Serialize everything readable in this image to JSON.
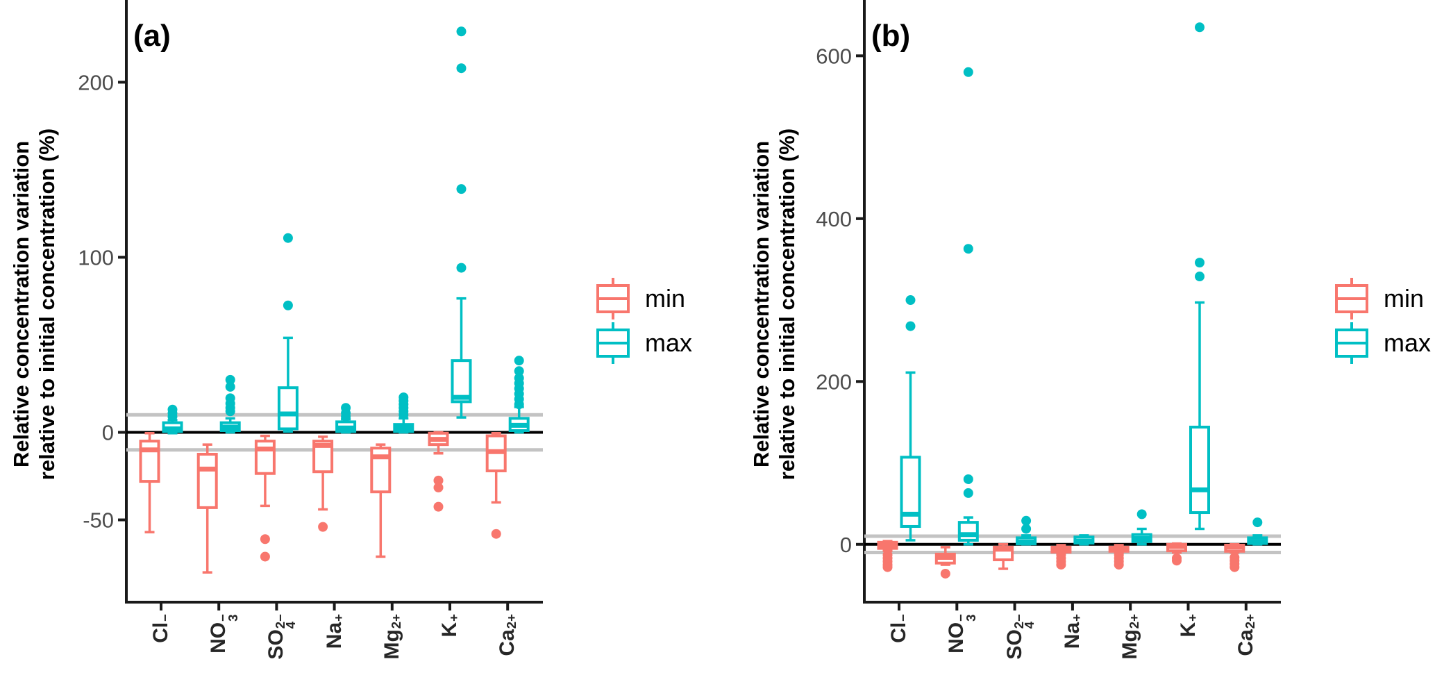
{
  "colors": {
    "min": "#F8766D",
    "max": "#00BFC4",
    "reference_line": "#C3C3C3",
    "zero_line": "#000000",
    "axis": "#1A1A1A",
    "y_tick_label": "#4D4D4D",
    "x_category_label": "#262626",
    "panel_label": "#000000"
  },
  "legend": {
    "items": [
      {
        "label": "min"
      },
      {
        "label": "max"
      }
    ]
  },
  "chart_data": [
    {
      "type": "boxplot",
      "panel_label": "(a)",
      "title": "",
      "xlabel": "",
      "ylabel_lines": [
        "Relative concentration variation",
        "relative to initial concentration (%)"
      ],
      "categories": [
        "Cl⁻",
        "NO₃⁻",
        "SO₄²⁻",
        "Na⁺",
        "Mg²⁺",
        "K⁺",
        "Ca²⁺"
      ],
      "categories_rich": [
        {
          "base": "Cl",
          "sub": "",
          "sup": "−"
        },
        {
          "base": "NO",
          "sub": "3",
          "sup": "−"
        },
        {
          "base": "SO",
          "sub": "4",
          "sup": "2−"
        },
        {
          "base": "Na",
          "sub": "",
          "sup": "+"
        },
        {
          "base": "Mg",
          "sub": "",
          "sup": "2+"
        },
        {
          "base": "K",
          "sub": "",
          "sup": "+"
        },
        {
          "base": "Ca",
          "sub": "",
          "sup": "2+"
        }
      ],
      "y_tick_values": [
        200,
        100,
        0,
        -50
      ],
      "y_tick_labels": [
        "200",
        "100",
        "0",
        "-50"
      ],
      "ylim": [
        -97,
        243
      ],
      "reference_lines": [
        10,
        -10
      ],
      "zero_line": 0,
      "grid": false,
      "legend_position": "right",
      "series": [
        {
          "name": "min",
          "boxes": [
            {
              "whisker_low": -57,
              "q1": -28,
              "median": -10,
              "q3": -5,
              "whisker_high": -0.5,
              "outliers": []
            },
            {
              "whisker_low": -80,
              "q1": -43,
              "median": -21,
              "q3": -12.5,
              "whisker_high": -7,
              "outliers": []
            },
            {
              "whisker_low": -42,
              "q1": -23.5,
              "median": -9.5,
              "q3": -5,
              "whisker_high": -2,
              "outliers": [
                -61,
                -71
              ]
            },
            {
              "whisker_low": -44,
              "q1": -22.5,
              "median": -7.5,
              "q3": -5,
              "whisker_high": -2.5,
              "outliers": [
                -54
              ]
            },
            {
              "whisker_low": -71,
              "q1": -34,
              "median": -14,
              "q3": -9,
              "whisker_high": -7,
              "outliers": []
            },
            {
              "whisker_low": -12,
              "q1": -7,
              "median": -4,
              "q3": -0.5,
              "whisker_high": 0,
              "outliers": [
                -27.5,
                -31.5,
                -42.5
              ]
            },
            {
              "whisker_low": -40,
              "q1": -22,
              "median": -11,
              "q3": -2,
              "whisker_high": -0.5,
              "outliers": [
                -58
              ]
            }
          ]
        },
        {
          "name": "max",
          "boxes": [
            {
              "whisker_low": -0.5,
              "q1": 0.5,
              "median": 2,
              "q3": 5.5,
              "whisker_high": 7,
              "outliers": [
                9,
                11,
                13
              ]
            },
            {
              "whisker_low": 0,
              "q1": 1,
              "median": 3,
              "q3": 5.5,
              "whisker_high": 8,
              "outliers": [
                12,
                14,
                16.5,
                19.5,
                26,
                30
              ]
            },
            {
              "whisker_low": 0.5,
              "q1": 2,
              "median": 10.5,
              "q3": 25.5,
              "whisker_high": 54,
              "outliers": [
                72.5,
                111
              ]
            },
            {
              "whisker_low": 0,
              "q1": 0.5,
              "median": 2.5,
              "q3": 6,
              "whisker_high": 7.5,
              "outliers": [
                9,
                11,
                14
              ]
            },
            {
              "whisker_low": 0,
              "q1": 0.5,
              "median": 2.5,
              "q3": 4.5,
              "whisker_high": 8,
              "outliers": [
                10,
                12,
                14,
                16,
                18,
                20
              ]
            },
            {
              "whisker_low": 8.5,
              "q1": 17.5,
              "median": 20,
              "q3": 41,
              "whisker_high": 76.5,
              "outliers": [
                94,
                139,
                208,
                229
              ]
            },
            {
              "whisker_low": 0,
              "q1": 1,
              "median": 4,
              "q3": 8,
              "whisker_high": 14.5,
              "outliers": [
                16,
                19,
                22,
                25,
                28,
                31,
                35,
                41
              ]
            }
          ]
        }
      ]
    },
    {
      "type": "boxplot",
      "panel_label": "(b)",
      "title": "",
      "xlabel": "",
      "ylabel_lines": [
        "Relative concentration variation",
        "relative to initial concentration (%)"
      ],
      "categories": [
        "Cl⁻",
        "NO₃⁻",
        "SO₄²⁻",
        "Na⁺",
        "Mg²⁺",
        "K⁺",
        "Ca²⁺"
      ],
      "categories_rich": [
        {
          "base": "Cl",
          "sub": "",
          "sup": "−"
        },
        {
          "base": "NO",
          "sub": "3",
          "sup": "−"
        },
        {
          "base": "SO",
          "sub": "4",
          "sup": "2−"
        },
        {
          "base": "Na",
          "sub": "",
          "sup": "+"
        },
        {
          "base": "Mg",
          "sub": "",
          "sup": "2+"
        },
        {
          "base": "K",
          "sub": "",
          "sup": "+"
        },
        {
          "base": "Ca",
          "sub": "",
          "sup": "2+"
        }
      ],
      "y_tick_values": [
        600,
        400,
        200,
        0
      ],
      "y_tick_labels": [
        "600",
        "400",
        "200",
        "0"
      ],
      "ylim": [
        -71,
        660
      ],
      "reference_lines": [
        10,
        -10
      ],
      "zero_line": 0,
      "grid": false,
      "legend_position": "right",
      "series": [
        {
          "name": "min",
          "boxes": [
            {
              "whisker_low": -8,
              "q1": -5,
              "median": -1.5,
              "q3": 2.5,
              "whisker_high": 4,
              "outliers": [
                -13,
                -17,
                -21,
                -25,
                -28
              ]
            },
            {
              "whisker_low": -25,
              "q1": -23,
              "median": -16,
              "q3": -12,
              "whisker_high": -3.5,
              "outliers": [
                -36
              ]
            },
            {
              "whisker_low": -30,
              "q1": -19,
              "median": -6,
              "q3": -3.5,
              "whisker_high": 0,
              "outliers": []
            },
            {
              "whisker_low": -11,
              "q1": -9.5,
              "median": -6,
              "q3": -3.5,
              "whisker_high": -1,
              "outliers": [
                -13,
                -17,
                -21,
                -25
              ]
            },
            {
              "whisker_low": -10.5,
              "q1": -8.5,
              "median": -6,
              "q3": -3.5,
              "whisker_high": -1,
              "outliers": [
                -13,
                -17,
                -21,
                -25
              ]
            },
            {
              "whisker_low": -10,
              "q1": -8,
              "median": -2.5,
              "q3": 0,
              "whisker_high": 1,
              "outliers": [
                -17,
                -20
              ]
            },
            {
              "whisker_low": -10,
              "q1": -8.5,
              "median": -3.5,
              "q3": -1,
              "whisker_high": 0,
              "outliers": [
                -16,
                -20,
                -24,
                -28
              ]
            }
          ]
        },
        {
          "name": "max",
          "boxes": [
            {
              "whisker_low": 5,
              "q1": 22,
              "median": 37,
              "q3": 107,
              "whisker_high": 211,
              "outliers": [
                268,
                300
              ]
            },
            {
              "whisker_low": 0,
              "q1": 5,
              "median": 12,
              "q3": 27,
              "whisker_high": 33,
              "outliers": [
                63,
                80,
                363,
                580
              ]
            },
            {
              "whisker_low": 0,
              "q1": 0.5,
              "median": 3,
              "q3": 8,
              "whisker_high": 11,
              "outliers": [
                19,
                29
              ]
            },
            {
              "whisker_low": 0,
              "q1": 1.5,
              "median": 4,
              "q3": 9,
              "whisker_high": 11,
              "outliers": []
            },
            {
              "whisker_low": 0,
              "q1": 3.5,
              "median": 7,
              "q3": 12,
              "whisker_high": 19,
              "outliers": [
                37
              ]
            },
            {
              "whisker_low": 19,
              "q1": 39,
              "median": 67,
              "q3": 144,
              "whisker_high": 297,
              "outliers": [
                329,
                346,
                635
              ]
            },
            {
              "whisker_low": 0,
              "q1": 1,
              "median": 3.5,
              "q3": 8,
              "whisker_high": 11,
              "outliers": [
                27
              ]
            }
          ]
        }
      ]
    }
  ]
}
